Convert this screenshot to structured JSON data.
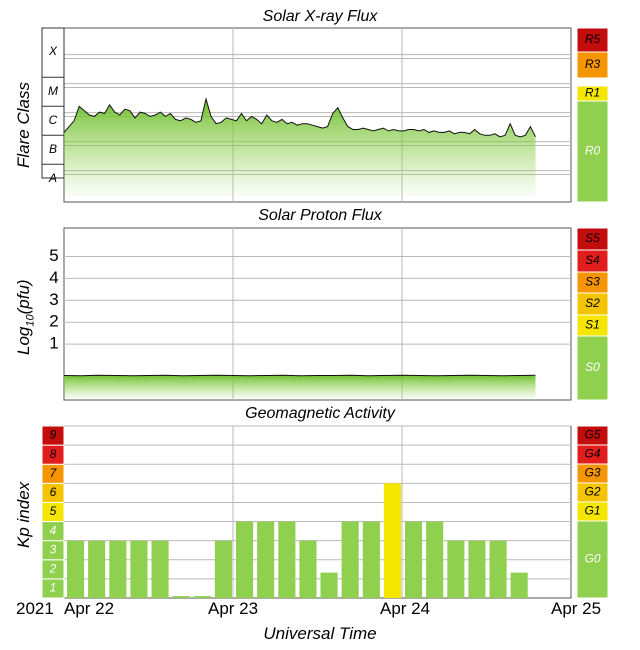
{
  "colors": {
    "green": "#8fd04e",
    "yellow": "#f5e600",
    "amber": "#f5c400",
    "orange": "#f59500",
    "red_orange": "#f06010",
    "red": "#e21d1d",
    "dark_red": "#c30d0d",
    "grid": "#b9b9b9"
  },
  "chart_data": [
    {
      "type": "area",
      "title": "Solar X-ray Flux",
      "ylabel": "Flare Class",
      "yscale": "log10 W/m2",
      "ylim": [
        -8.8,
        -2.8
      ],
      "classes": [
        {
          "label": "A",
          "value": -8
        },
        {
          "label": "B",
          "value": -7
        },
        {
          "label": "C",
          "value": -6
        },
        {
          "label": "M",
          "value": -5
        },
        {
          "label": "X",
          "value": -4
        }
      ],
      "x": [
        0.0,
        0.03,
        0.06,
        0.09,
        0.12,
        0.15,
        0.18,
        0.21,
        0.24,
        0.27,
        0.3,
        0.33,
        0.36,
        0.39,
        0.42,
        0.45,
        0.48,
        0.51,
        0.54,
        0.57,
        0.6,
        0.63,
        0.66,
        0.69,
        0.72,
        0.75,
        0.78,
        0.81,
        0.84,
        0.87,
        0.9,
        0.93,
        0.96,
        0.99,
        1.02,
        1.05,
        1.08,
        1.11,
        1.14,
        1.17,
        1.2,
        1.23,
        1.26,
        1.29,
        1.32,
        1.35,
        1.38,
        1.41,
        1.44,
        1.47,
        1.5,
        1.53,
        1.56,
        1.59,
        1.62,
        1.65,
        1.68,
        1.71,
        1.74,
        1.77,
        1.8,
        1.83,
        1.86,
        1.89,
        1.92,
        1.95,
        1.98,
        2.01,
        2.04,
        2.07,
        2.1,
        2.13,
        2.16,
        2.19,
        2.22,
        2.25,
        2.28,
        2.31,
        2.34,
        2.37,
        2.4,
        2.43,
        2.46,
        2.49,
        2.52,
        2.55,
        2.58,
        2.61,
        2.64,
        2.67,
        2.7,
        2.73,
        2.76,
        2.79
      ],
      "values": [
        -6.4,
        -6.2,
        -6.0,
        -5.5,
        -5.65,
        -5.8,
        -5.85,
        -5.7,
        -5.75,
        -5.45,
        -5.7,
        -5.8,
        -5.6,
        -5.65,
        -5.9,
        -5.7,
        -5.75,
        -5.85,
        -5.8,
        -5.7,
        -5.85,
        -5.75,
        -5.95,
        -6.0,
        -5.9,
        -5.95,
        -6.05,
        -6.0,
        -5.25,
        -5.85,
        -6.1,
        -6.05,
        -5.9,
        -5.95,
        -6.0,
        -5.75,
        -6.0,
        -5.85,
        -5.95,
        -6.1,
        -5.8,
        -6.0,
        -6.05,
        -5.95,
        -6.1,
        -6.05,
        -6.15,
        -6.1,
        -6.1,
        -6.15,
        -6.2,
        -6.25,
        -6.2,
        -5.75,
        -5.55,
        -5.9,
        -6.2,
        -6.3,
        -6.3,
        -6.25,
        -6.3,
        -6.35,
        -6.3,
        -6.25,
        -6.35,
        -6.3,
        -6.35,
        -6.35,
        -6.3,
        -6.3,
        -6.35,
        -6.3,
        -6.4,
        -6.35,
        -6.4,
        -6.4,
        -6.35,
        -6.45,
        -6.4,
        -6.4,
        -6.45,
        -6.3,
        -6.45,
        -6.5,
        -6.5,
        -6.45,
        -6.55,
        -6.5,
        -6.1,
        -6.5,
        -6.55,
        -6.5,
        -6.2,
        -6.55
      ]
    },
    {
      "type": "area",
      "title": "Solar Proton Flux",
      "ylabel": "Log10(pfu)",
      "ylim": [
        -1.55,
        6.3
      ],
      "yticks": [
        1,
        2,
        3,
        4,
        5
      ],
      "x": [
        0.0,
        0.1,
        0.2,
        0.3,
        0.4,
        0.5,
        0.6,
        0.7,
        0.8,
        0.9,
        1.0,
        1.1,
        1.2,
        1.3,
        1.4,
        1.5,
        1.6,
        1.7,
        1.8,
        1.9,
        2.0,
        2.1,
        2.2,
        2.3,
        2.4,
        2.5,
        2.6,
        2.7,
        2.79
      ],
      "values": [
        -0.43,
        -0.44,
        -0.42,
        -0.43,
        -0.44,
        -0.43,
        -0.42,
        -0.44,
        -0.43,
        -0.42,
        -0.43,
        -0.44,
        -0.43,
        -0.42,
        -0.44,
        -0.43,
        -0.43,
        -0.42,
        -0.44,
        -0.43,
        -0.42,
        -0.43,
        -0.44,
        -0.43,
        -0.42,
        -0.43,
        -0.44,
        -0.43,
        -0.42
      ]
    },
    {
      "type": "bar",
      "title": "Geomagnetic Activity",
      "ylabel": "Kp index",
      "ylim": [
        0,
        9
      ],
      "kp_labels": [
        "1",
        "2",
        "3",
        "4",
        "5",
        "6",
        "7",
        "8",
        "9"
      ],
      "values": [
        3,
        3,
        3,
        3,
        3,
        0.1,
        0.1,
        3,
        4,
        4,
        4,
        3,
        1.33,
        4,
        4,
        6,
        4,
        4,
        3,
        3,
        3,
        1.33,
        0
      ]
    }
  ],
  "scales": {
    "radio": [
      {
        "label": "R5",
        "color": "#c30d0d"
      },
      {
        "label": "R3",
        "color": "#f59500"
      },
      {
        "label": "R1",
        "color": "#f5e600"
      },
      {
        "label": "R0",
        "color": "#8fd04e"
      }
    ],
    "solar": [
      {
        "label": "S5",
        "color": "#c30d0d"
      },
      {
        "label": "S4",
        "color": "#e21d1d"
      },
      {
        "label": "S3",
        "color": "#f59500"
      },
      {
        "label": "S2",
        "color": "#f5c400"
      },
      {
        "label": "S1",
        "color": "#f5e600"
      },
      {
        "label": "S0",
        "color": "#8fd04e"
      }
    ],
    "geomagnetic": [
      {
        "label": "G5",
        "color": "#c30d0d"
      },
      {
        "label": "G4",
        "color": "#e21d1d"
      },
      {
        "label": "G3",
        "color": "#f59500"
      },
      {
        "label": "G2",
        "color": "#f5c400"
      },
      {
        "label": "G1",
        "color": "#f5e600"
      },
      {
        "label": "G0",
        "color": "#8fd04e"
      }
    ]
  },
  "xaxis": {
    "label": "Universal Time",
    "year": "2021",
    "ticks": [
      "Apr 22",
      "Apr 23",
      "Apr 24",
      "Apr 25"
    ]
  }
}
